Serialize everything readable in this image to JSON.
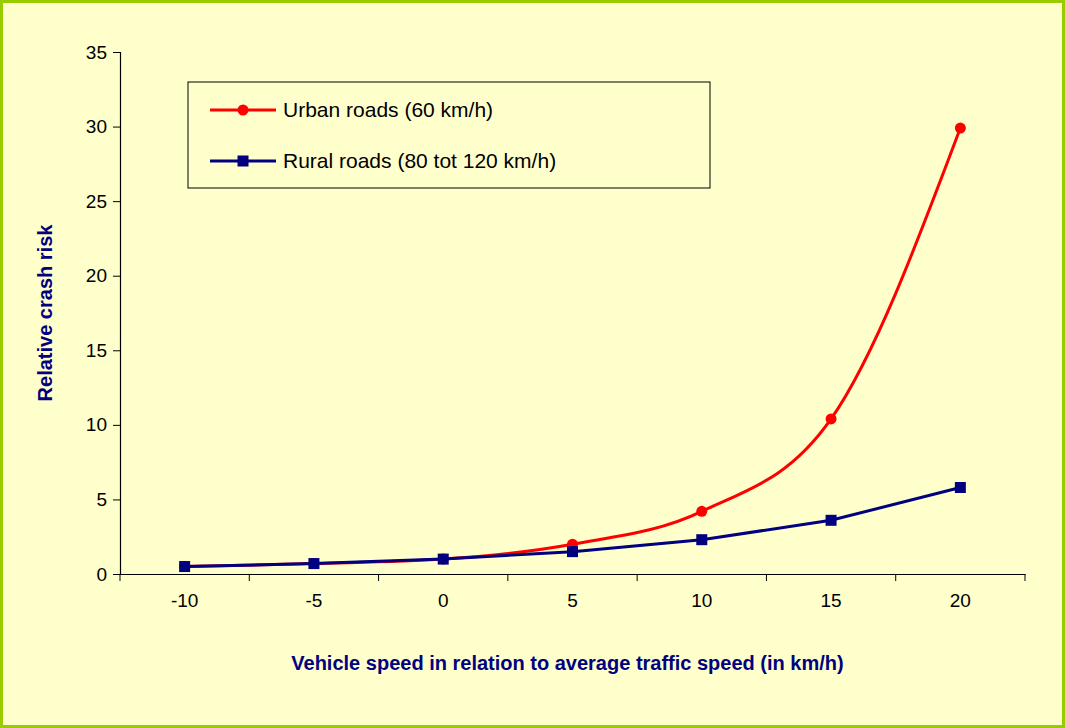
{
  "chart_data": {
    "type": "line",
    "x_label": "Vehicle speed in relation to average traffic speed (in km/h)",
    "y_label": "Relative crash risk",
    "categories": [
      "-10",
      "-5",
      "0",
      "5",
      "10",
      "15",
      "20"
    ],
    "series": [
      {
        "name": "Urban roads (60 km/h)",
        "color": "#ff0000",
        "marker": "circle",
        "line_style": "smooth",
        "values": [
          0.5,
          0.7,
          1.0,
          2.0,
          4.2,
          10.4,
          29.9
        ]
      },
      {
        "name": "Rural roads (80 tot 120 km/h)",
        "color": "#000080",
        "marker": "square",
        "line_style": "solid",
        "values": [
          0.5,
          0.7,
          1.0,
          1.5,
          2.3,
          3.6,
          5.8
        ]
      }
    ],
    "ylim": [
      0,
      35
    ],
    "yticks": [
      0,
      5,
      10,
      15,
      20,
      25,
      30,
      35
    ],
    "grid": false,
    "legend": "top-left"
  }
}
